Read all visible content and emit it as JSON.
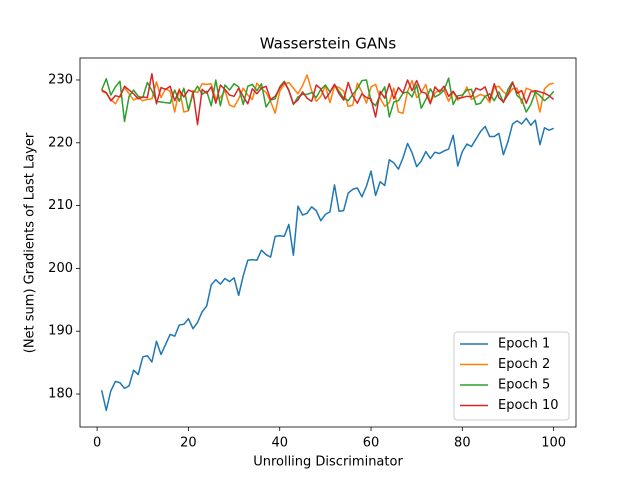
{
  "chart_data": {
    "type": "line",
    "title": "Wasserstein GANs",
    "x_label": "Unrolling Discriminator",
    "y_label": "(Net sum) Gradients of Last Layer",
    "x": [
      1,
      2,
      3,
      4,
      5,
      6,
      7,
      8,
      9,
      10,
      11,
      12,
      13,
      14,
      15,
      16,
      17,
      18,
      19,
      20,
      21,
      22,
      23,
      24,
      25,
      26,
      27,
      28,
      29,
      30,
      31,
      32,
      33,
      34,
      35,
      36,
      37,
      38,
      39,
      40,
      41,
      42,
      43,
      44,
      45,
      46,
      47,
      48,
      49,
      50,
      51,
      52,
      53,
      54,
      55,
      56,
      57,
      58,
      59,
      60,
      61,
      62,
      63,
      64,
      65,
      66,
      67,
      68,
      69,
      70,
      71,
      72,
      73,
      74,
      75,
      76,
      77,
      78,
      79,
      80,
      81,
      82,
      83,
      84,
      85,
      86,
      87,
      88,
      89,
      90,
      91,
      92,
      93,
      94,
      95,
      96,
      97,
      98,
      99,
      100
    ],
    "series": [
      {
        "name": "Epoch 1",
        "color": "#1f77b4",
        "values": [
          180.6,
          177.4,
          180.5,
          182,
          181.8,
          180.9,
          181.3,
          183.8,
          183.1,
          185.9,
          186.1,
          185.1,
          188.4,
          186.3,
          187.9,
          189.5,
          189.2,
          191,
          191.1,
          192,
          190.4,
          191.4,
          193.1,
          194,
          197.4,
          198.2,
          197.5,
          198.4,
          197.9,
          198.5,
          195.7,
          198.8,
          201.3,
          201.4,
          201.3,
          202.9,
          202.2,
          201.8,
          205.1,
          205.2,
          205.1,
          207,
          202.1,
          209.9,
          208.5,
          208.8,
          209.8,
          209.2,
          207.6,
          208.6,
          209,
          213.3,
          209.1,
          209.2,
          212,
          212.6,
          212.8,
          211.4,
          213.1,
          215.5,
          211.6,
          213.8,
          213.2,
          217.3,
          216.8,
          215.8,
          217.6,
          219.9,
          218.4,
          216.2,
          217.1,
          218.6,
          217.5,
          218.5,
          218.3,
          218.7,
          219,
          221.2,
          216.3,
          218.6,
          219.8,
          219.4,
          220.6,
          221.8,
          222.6,
          221,
          221,
          221.5,
          218.1,
          220.2,
          223,
          223.5,
          223,
          223.9,
          222.8,
          223.6,
          219.7,
          222.4,
          222,
          222.3
        ]
      },
      {
        "name": "Epoch 2",
        "color": "#ff7f0e",
        "values": [
          228.2,
          227.9,
          226.9,
          226.2,
          227.5,
          228.8,
          227.8,
          226.8,
          227.2,
          226.7,
          226.9,
          227.0,
          229.7,
          227.2,
          228.6,
          228.2,
          224.9,
          228.6,
          224.9,
          225.1,
          228.3,
          228.0,
          229.4,
          229.3,
          229.4,
          226.9,
          227.2,
          228.3,
          226.0,
          225.7,
          227.0,
          228.7,
          227.6,
          226.9,
          229.5,
          228.6,
          228.0,
          226.6,
          224.7,
          228.2,
          229.3,
          229.6,
          228.7,
          227.8,
          229.1,
          230.8,
          228.3,
          226.6,
          227.4,
          229.1,
          226.4,
          229.0,
          228.8,
          228.2,
          225.8,
          226.0,
          229.5,
          228.1,
          226.3,
          228.9,
          229.3,
          227.1,
          225.8,
          226.4,
          228.7,
          224.9,
          224.7,
          228.2,
          229.9,
          227.2,
          228.0,
          229.3,
          226.4,
          227.9,
          228.4,
          228.3,
          226.6,
          228.1,
          226.8,
          227.4,
          228.9,
          226.9,
          227.3,
          227.7,
          227.4,
          226.4,
          228.8,
          229.0,
          228.1,
          227.6,
          228.6,
          228.7,
          226.3,
          228.7,
          228.4,
          227.9,
          224.9,
          228.6,
          229.3,
          229.5
        ]
      },
      {
        "name": "Epoch 5",
        "color": "#2ca02c",
        "values": [
          228.4,
          230.2,
          227.6,
          228.9,
          229.8,
          223.4,
          227.4,
          228.4,
          227.4,
          227.2,
          229.6,
          228.3,
          226.6,
          226.5,
          226.4,
          226.3,
          228.4,
          226.6,
          228.7,
          225.2,
          227.8,
          229.0,
          227.7,
          228.2,
          225.9,
          230.0,
          225.9,
          229.2,
          228.4,
          229.4,
          228.9,
          226.1,
          229.0,
          229.3,
          228.3,
          229.4,
          225.7,
          226.8,
          227.0,
          228.9,
          229.8,
          228.4,
          226.1,
          227.3,
          227.7,
          227.7,
          228.0,
          227.2,
          228.5,
          229.2,
          228.1,
          229.3,
          228.2,
          227.1,
          226.7,
          227.7,
          228.6,
          229.9,
          230.0,
          226.6,
          225.9,
          227.6,
          228.9,
          224.1,
          226.5,
          226.7,
          227.9,
          228.1,
          227.3,
          229.2,
          225.5,
          226.9,
          228.6,
          227.3,
          227.7,
          228.4,
          230.3,
          226.1,
          227.5,
          227.6,
          228.4,
          228.5,
          226.1,
          226.3,
          227.4,
          227.8,
          226.7,
          228.1,
          226.4,
          228.5,
          229.7,
          227.5,
          226.9,
          224.9,
          226.1,
          228.1,
          227.5,
          226.7,
          227.3,
          228.2
        ]
      },
      {
        "name": "Epoch 10",
        "color": "#d62728",
        "values": [
          228.4,
          228.0,
          226.7,
          227.5,
          227.3,
          229.0,
          228.4,
          227.8,
          227.0,
          227.3,
          227.2,
          231.0,
          226.2,
          228.8,
          228.5,
          229.0,
          226.7,
          228.4,
          227.3,
          228.4,
          228.1,
          222.9,
          228.5,
          227.9,
          228.9,
          226.3,
          229.2,
          228.5,
          227.6,
          227.4,
          228.7,
          227.4,
          226.2,
          228.6,
          227.8,
          228.7,
          229.0,
          226.9,
          227.4,
          228.7,
          229.7,
          228.3,
          226.2,
          226.8,
          228.1,
          227.1,
          226.6,
          229.2,
          228.6,
          227.0,
          228.0,
          229.3,
          227.8,
          226.8,
          229.6,
          227.5,
          226.3,
          227.8,
          227.2,
          227.0,
          224.1,
          228.2,
          227.1,
          229.4,
          227.0,
          228.8,
          227.9,
          230.0,
          228.3,
          229.9,
          228.1,
          227.9,
          226.2,
          228.9,
          228.1,
          229.0,
          227.4,
          228.2,
          227.1,
          227.2,
          227.4,
          227.3,
          228.7,
          228.4,
          228.9,
          226.8,
          229.4,
          227.2,
          226.5,
          227.7,
          229.6,
          227.9,
          228.3,
          226.3,
          228.1,
          228.3,
          228.1,
          227.9,
          227.5,
          226.9
        ]
      }
    ],
    "xlim": [
      -3.75,
      104.9
    ],
    "ylim": [
      174.75,
      233.5
    ],
    "xticks": [
      0,
      20,
      40,
      60,
      80,
      100
    ],
    "yticks": [
      180,
      190,
      200,
      210,
      220,
      230
    ],
    "legend": "lower right"
  }
}
